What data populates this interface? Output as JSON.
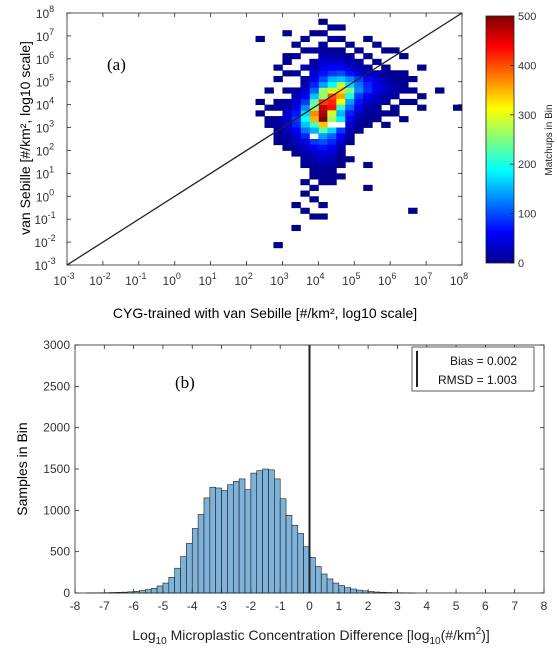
{
  "figure": {
    "panel_a_label": "(a)",
    "panel_b_label": "(b)"
  },
  "colors": {
    "axis": "#262626",
    "tick_label": "#333333",
    "bar_fill": "#7fb2d9",
    "bar_edge": "#1a1a1a",
    "line": "#222222"
  },
  "chart_data": [
    {
      "type": "heatmap",
      "panel": "(a)",
      "xlabel": "CYG-trained with van Sebille  [#/km², log10 scale]",
      "ylabel": "van Sebille  [#/km², log10 scale]",
      "x_scale": "log",
      "y_scale": "log",
      "xlim": [
        -3,
        8
      ],
      "ylim": [
        -3,
        8
      ],
      "x_tick_exponents": [
        -3,
        -2,
        -1,
        0,
        1,
        2,
        3,
        4,
        5,
        6,
        7,
        8
      ],
      "y_tick_exponents": [
        -3,
        -2,
        -1,
        0,
        1,
        2,
        3,
        4,
        5,
        6,
        7,
        8
      ],
      "tick_base": "10",
      "grid": false,
      "reference_line": "1:1",
      "bin_exponent_width": 0.25,
      "bins": [
        [
          4,
          3.25,
          500
        ],
        [
          4,
          3.5,
          480
        ],
        [
          4,
          3.75,
          460
        ],
        [
          4.25,
          3.75,
          430
        ],
        [
          4.25,
          4,
          420
        ],
        [
          4.25,
          4.25,
          400
        ],
        [
          4.5,
          4.25,
          360
        ],
        [
          4.5,
          4.5,
          330
        ],
        [
          4,
          4,
          410
        ],
        [
          3.75,
          3.5,
          370
        ],
        [
          3.75,
          3.25,
          350
        ],
        [
          4,
          3,
          340
        ],
        [
          4.5,
          4,
          310
        ],
        [
          4.5,
          4.75,
          280
        ],
        [
          4.75,
          4.5,
          250
        ],
        [
          4.25,
          4.5,
          300
        ],
        [
          4,
          4.5,
          260
        ],
        [
          3.75,
          4,
          240
        ],
        [
          4,
          2.75,
          230
        ],
        [
          3.75,
          3,
          220
        ],
        [
          4.25,
          3.5,
          290
        ],
        [
          4.75,
          4.25,
          200
        ],
        [
          4.25,
          3.25,
          270
        ],
        [
          4.5,
          3.75,
          210
        ],
        [
          4,
          4.25,
          260
        ],
        [
          3.75,
          3.75,
          250
        ],
        [
          3.5,
          3.25,
          190
        ],
        [
          3.5,
          3.5,
          170
        ],
        [
          4.75,
          4.75,
          170
        ],
        [
          4.5,
          5,
          160
        ],
        [
          4.25,
          4.75,
          190
        ],
        [
          4.25,
          5,
          150
        ],
        [
          4,
          4.75,
          140
        ],
        [
          3.75,
          4.25,
          160
        ],
        [
          3.5,
          3,
          160
        ],
        [
          3.75,
          2.75,
          150
        ],
        [
          4.25,
          2.75,
          170
        ],
        [
          4.5,
          3.25,
          180
        ],
        [
          4,
          2.5,
          140
        ],
        [
          5,
          4.5,
          130
        ],
        [
          5,
          4.75,
          120
        ],
        [
          4.75,
          5,
          130
        ],
        [
          4.5,
          5.25,
          100
        ],
        [
          3.5,
          3.75,
          130
        ],
        [
          3.75,
          4.5,
          110
        ],
        [
          4,
          5,
          100
        ],
        [
          4.75,
          4,
          140
        ],
        [
          4.75,
          3.75,
          110
        ],
        [
          4.5,
          3.5,
          150
        ],
        [
          3.5,
          2.75,
          120
        ],
        [
          4,
          2.25,
          100
        ],
        [
          4.25,
          2.5,
          110
        ],
        [
          3.25,
          3.25,
          90
        ],
        [
          3.25,
          3,
          80
        ],
        [
          3.25,
          3.5,
          75
        ],
        [
          5,
          5,
          95
        ],
        [
          5.25,
          4.75,
          80
        ],
        [
          5.25,
          4.5,
          85
        ],
        [
          5,
          4.25,
          90
        ],
        [
          4.25,
          5.25,
          90
        ],
        [
          4,
          5.25,
          70
        ],
        [
          3.75,
          4.75,
          80
        ],
        [
          3.5,
          4,
          90
        ],
        [
          3.5,
          2.5,
          80
        ],
        [
          3.75,
          2.25,
          90
        ],
        [
          4.25,
          2.25,
          80
        ],
        [
          4.5,
          2.75,
          90
        ],
        [
          4.75,
          3.5,
          75
        ],
        [
          5,
          4,
          70
        ],
        [
          5.25,
          5,
          65
        ],
        [
          4.75,
          5.25,
          70
        ],
        [
          4.5,
          5.5,
          60
        ],
        [
          4.25,
          5.5,
          60
        ],
        [
          4,
          5.5,
          50
        ],
        [
          3.75,
          5,
          55
        ],
        [
          3.5,
          4.25,
          60
        ],
        [
          3.25,
          3.75,
          55
        ],
        [
          3.25,
          2.75,
          60
        ],
        [
          3.5,
          2.25,
          50
        ],
        [
          3.75,
          2,
          60
        ],
        [
          4,
          2,
          70
        ],
        [
          4.25,
          2,
          55
        ],
        [
          4.5,
          2.5,
          60
        ],
        [
          4.75,
          3.25,
          55
        ],
        [
          5,
          3.75,
          55
        ],
        [
          5.5,
          4.75,
          50
        ],
        [
          5.5,
          4.5,
          55
        ],
        [
          5.25,
          4.25,
          55
        ],
        [
          5.5,
          5,
          45
        ],
        [
          5,
          5.25,
          50
        ],
        [
          3,
          3,
          45
        ],
        [
          3,
          3.25,
          40
        ],
        [
          3,
          3.5,
          35
        ],
        [
          3.25,
          4,
          40
        ],
        [
          3.5,
          4.5,
          40
        ],
        [
          3.75,
          5.25,
          40
        ],
        [
          4,
          5.75,
          40
        ],
        [
          4.25,
          5.75,
          35
        ],
        [
          4.5,
          5.75,
          35
        ],
        [
          4.75,
          5.5,
          40
        ],
        [
          5.25,
          5.25,
          35
        ],
        [
          5.5,
          4.25,
          35
        ],
        [
          5.75,
          4.5,
          35
        ],
        [
          5.75,
          4.75,
          30
        ],
        [
          5.25,
          4,
          40
        ],
        [
          5,
          3.5,
          35
        ],
        [
          4.75,
          3,
          40
        ],
        [
          4.5,
          2.25,
          35
        ],
        [
          4.25,
          1.75,
          40
        ],
        [
          4,
          1.75,
          45
        ],
        [
          3.75,
          1.75,
          35
        ],
        [
          3.5,
          2,
          35
        ],
        [
          3.25,
          2.5,
          40
        ],
        [
          3,
          2.75,
          30
        ],
        [
          3,
          3.75,
          25
        ],
        [
          3.25,
          4.25,
          25
        ],
        [
          3.5,
          4.75,
          25
        ],
        [
          3.75,
          5.5,
          25
        ],
        [
          4,
          6,
          25
        ],
        [
          4.25,
          6,
          22
        ],
        [
          4.5,
          6,
          20
        ],
        [
          4.75,
          5.75,
          25
        ],
        [
          5,
          5.5,
          25
        ],
        [
          5.5,
          5.25,
          22
        ],
        [
          5.75,
          5,
          22
        ],
        [
          6,
          4.75,
          18
        ],
        [
          6,
          4.5,
          20
        ],
        [
          5.75,
          4.25,
          20
        ],
        [
          5.5,
          4,
          22
        ],
        [
          5.25,
          3.75,
          20
        ],
        [
          5,
          3.25,
          20
        ],
        [
          4.75,
          2.75,
          22
        ],
        [
          4.5,
          2,
          22
        ],
        [
          4.25,
          1.5,
          25
        ],
        [
          4,
          1.5,
          30
        ],
        [
          3.75,
          1.5,
          22
        ],
        [
          3.5,
          1.75,
          20
        ],
        [
          3.25,
          2.25,
          25
        ],
        [
          3,
          2.5,
          20
        ],
        [
          2.75,
          3,
          18
        ],
        [
          2.75,
          3.25,
          15
        ],
        [
          2.75,
          2.75,
          15
        ],
        [
          3,
          4,
          15
        ],
        [
          3.25,
          4.5,
          15
        ],
        [
          3.5,
          5,
          15
        ],
        [
          3.75,
          5.75,
          15
        ],
        [
          4,
          6.25,
          15
        ],
        [
          4.25,
          6.25,
          12
        ],
        [
          4.5,
          6.25,
          12
        ],
        [
          4.75,
          6,
          15
        ],
        [
          5,
          5.75,
          15
        ],
        [
          5.25,
          5.5,
          15
        ],
        [
          5.75,
          5.25,
          12
        ],
        [
          6,
          5,
          12
        ],
        [
          6.25,
          4.75,
          10
        ],
        [
          6.25,
          4.5,
          12
        ],
        [
          6,
          4.25,
          12
        ],
        [
          5.75,
          4,
          12
        ],
        [
          5.5,
          3.75,
          12
        ],
        [
          5.25,
          3.5,
          12
        ],
        [
          5,
          3,
          12
        ],
        [
          4.75,
          2.5,
          12
        ],
        [
          4.5,
          1.75,
          12
        ],
        [
          4.25,
          1.25,
          15
        ],
        [
          4,
          1.25,
          18
        ],
        [
          3.75,
          1.25,
          12
        ],
        [
          3.5,
          1.5,
          12
        ],
        [
          3.25,
          2,
          15
        ],
        [
          3,
          2.25,
          12
        ],
        [
          2.75,
          2.5,
          10
        ],
        [
          2.5,
          3,
          10
        ],
        [
          2.5,
          3.25,
          8
        ],
        [
          4,
          7,
          10
        ],
        [
          3.75,
          7,
          8
        ],
        [
          4.25,
          7.25,
          8
        ],
        [
          3.5,
          6.75,
          6
        ],
        [
          4,
          7.5,
          5
        ],
        [
          3,
          7,
          6
        ],
        [
          3.25,
          6.5,
          8
        ],
        [
          4.5,
          6.75,
          8
        ],
        [
          4.75,
          6.5,
          10
        ],
        [
          4.5,
          7.25,
          6
        ],
        [
          4.25,
          6.75,
          12
        ],
        [
          4,
          6.5,
          14
        ],
        [
          3.5,
          6.25,
          10
        ],
        [
          3.25,
          6,
          12
        ],
        [
          3.75,
          6.25,
          14
        ],
        [
          3.5,
          5.5,
          18
        ],
        [
          3.25,
          5.25,
          15
        ],
        [
          3,
          4.5,
          12
        ],
        [
          2.75,
          4,
          10
        ],
        [
          2.5,
          3.75,
          8
        ],
        [
          2.75,
          3.75,
          12
        ],
        [
          5,
          6.25,
          10
        ],
        [
          5.25,
          6,
          10
        ],
        [
          5.5,
          5.75,
          8
        ],
        [
          5.75,
          5.5,
          8
        ],
        [
          6,
          5.25,
          8
        ],
        [
          6.25,
          5,
          6
        ],
        [
          6.5,
          5,
          6
        ],
        [
          6.25,
          5.25,
          5
        ],
        [
          6.5,
          4.5,
          8
        ],
        [
          6.75,
          4.25,
          6
        ],
        [
          6.5,
          4,
          8
        ],
        [
          6.25,
          4,
          8
        ],
        [
          6,
          3.75,
          8
        ],
        [
          5.75,
          3.5,
          8
        ],
        [
          5.5,
          3.25,
          8
        ],
        [
          5.25,
          3.25,
          10
        ],
        [
          5.5,
          3.5,
          10
        ],
        [
          6,
          3.5,
          5
        ],
        [
          6.75,
          3.75,
          5
        ],
        [
          7.25,
          4.5,
          5
        ],
        [
          7.75,
          3.75,
          4
        ],
        [
          6.25,
          3.25,
          4
        ],
        [
          5.75,
          3,
          5
        ],
        [
          5.25,
          3,
          8
        ],
        [
          5,
          2.75,
          8
        ],
        [
          4.75,
          2.25,
          8
        ],
        [
          4.5,
          1.5,
          8
        ],
        [
          4.25,
          1,
          10
        ],
        [
          4,
          1,
          12
        ],
        [
          3.75,
          1,
          8
        ],
        [
          3.5,
          1.25,
          8
        ],
        [
          3.25,
          1.75,
          10
        ],
        [
          3,
          2,
          8
        ],
        [
          2.75,
          2.25,
          6
        ],
        [
          4.25,
          0.75,
          8
        ],
        [
          4,
          0.75,
          8
        ],
        [
          3.75,
          0.75,
          6
        ],
        [
          4.5,
          1.25,
          6
        ],
        [
          4.25,
          0.5,
          6
        ],
        [
          4.5,
          0.75,
          5
        ],
        [
          3.5,
          0.5,
          5
        ],
        [
          3.75,
          0.25,
          6
        ],
        [
          3.5,
          0,
          5
        ],
        [
          4,
          0.5,
          6
        ],
        [
          4.75,
          1.5,
          6
        ],
        [
          5.25,
          1.25,
          5
        ],
        [
          5.25,
          0.25,
          5
        ],
        [
          3.75,
          -0.25,
          5
        ],
        [
          4,
          -0.5,
          5
        ],
        [
          3.25,
          -0.5,
          5
        ],
        [
          3.5,
          -0.75,
          5
        ],
        [
          3.25,
          -1.5,
          4
        ],
        [
          3.75,
          -1,
          4
        ],
        [
          4,
          -1,
          4
        ],
        [
          6.5,
          -0.75,
          5
        ],
        [
          2.75,
          -2.25,
          4
        ],
        [
          6,
          6.25,
          5
        ],
        [
          6.25,
          6,
          5
        ],
        [
          6.75,
          5.5,
          5
        ],
        [
          2.25,
          6.75,
          5
        ],
        [
          3,
          6,
          6
        ],
        [
          3,
          5.75,
          8
        ],
        [
          2.75,
          5.5,
          6
        ],
        [
          3,
          5.25,
          8
        ],
        [
          2.75,
          5,
          8
        ],
        [
          2.5,
          4.5,
          6
        ],
        [
          2.25,
          4,
          5
        ],
        [
          2.25,
          3.5,
          5
        ],
        [
          5.75,
          6.25,
          6
        ],
        [
          5.5,
          6.5,
          6
        ],
        [
          5.25,
          6.75,
          5
        ]
      ]
    },
    {
      "type": "colorbar",
      "label": "Matchups in Bin",
      "range": [
        0,
        500
      ],
      "ticks": [
        0,
        100,
        200,
        300,
        400,
        500
      ],
      "colormap": "jet"
    },
    {
      "type": "bar",
      "panel": "(b)",
      "xlabel_prefix": "Log",
      "xlabel_base": "10",
      "xlabel_main": " Microplastic Concentration Difference [log",
      "xlabel_inner_base": "10",
      "xlabel_unit": "(#/km",
      "xlabel_power": "2",
      "xlabel_close": ")]",
      "ylabel": "Samples in Bin",
      "xlim": [
        -8,
        8
      ],
      "ylim": [
        0,
        3000
      ],
      "xticks": [
        -8,
        -7,
        -6,
        -5,
        -4,
        -3,
        -2,
        -1,
        0,
        1,
        2,
        3,
        4,
        5,
        6,
        7,
        8
      ],
      "yticks": [
        0,
        500,
        1000,
        1500,
        2000,
        2500,
        3000
      ],
      "grid": false,
      "bin_width": 0.2,
      "bin_start": -7.6,
      "values": [
        2,
        2,
        3,
        4,
        6,
        8,
        10,
        14,
        20,
        30,
        40,
        55,
        85,
        120,
        190,
        300,
        440,
        600,
        780,
        950,
        1150,
        1280,
        1270,
        1240,
        1310,
        1350,
        1380,
        1250,
        1450,
        1480,
        1500,
        1490,
        1380,
        1140,
        940,
        820,
        720,
        560,
        430,
        320,
        230,
        170,
        120,
        90,
        65,
        48,
        35,
        26,
        18,
        12,
        9,
        6,
        4,
        3,
        2,
        2
      ],
      "vertical_line_x": 0,
      "legend": {
        "position": "top-right",
        "line1": "Bias = 0.002",
        "line2": "RMSD = 1.003"
      }
    }
  ]
}
